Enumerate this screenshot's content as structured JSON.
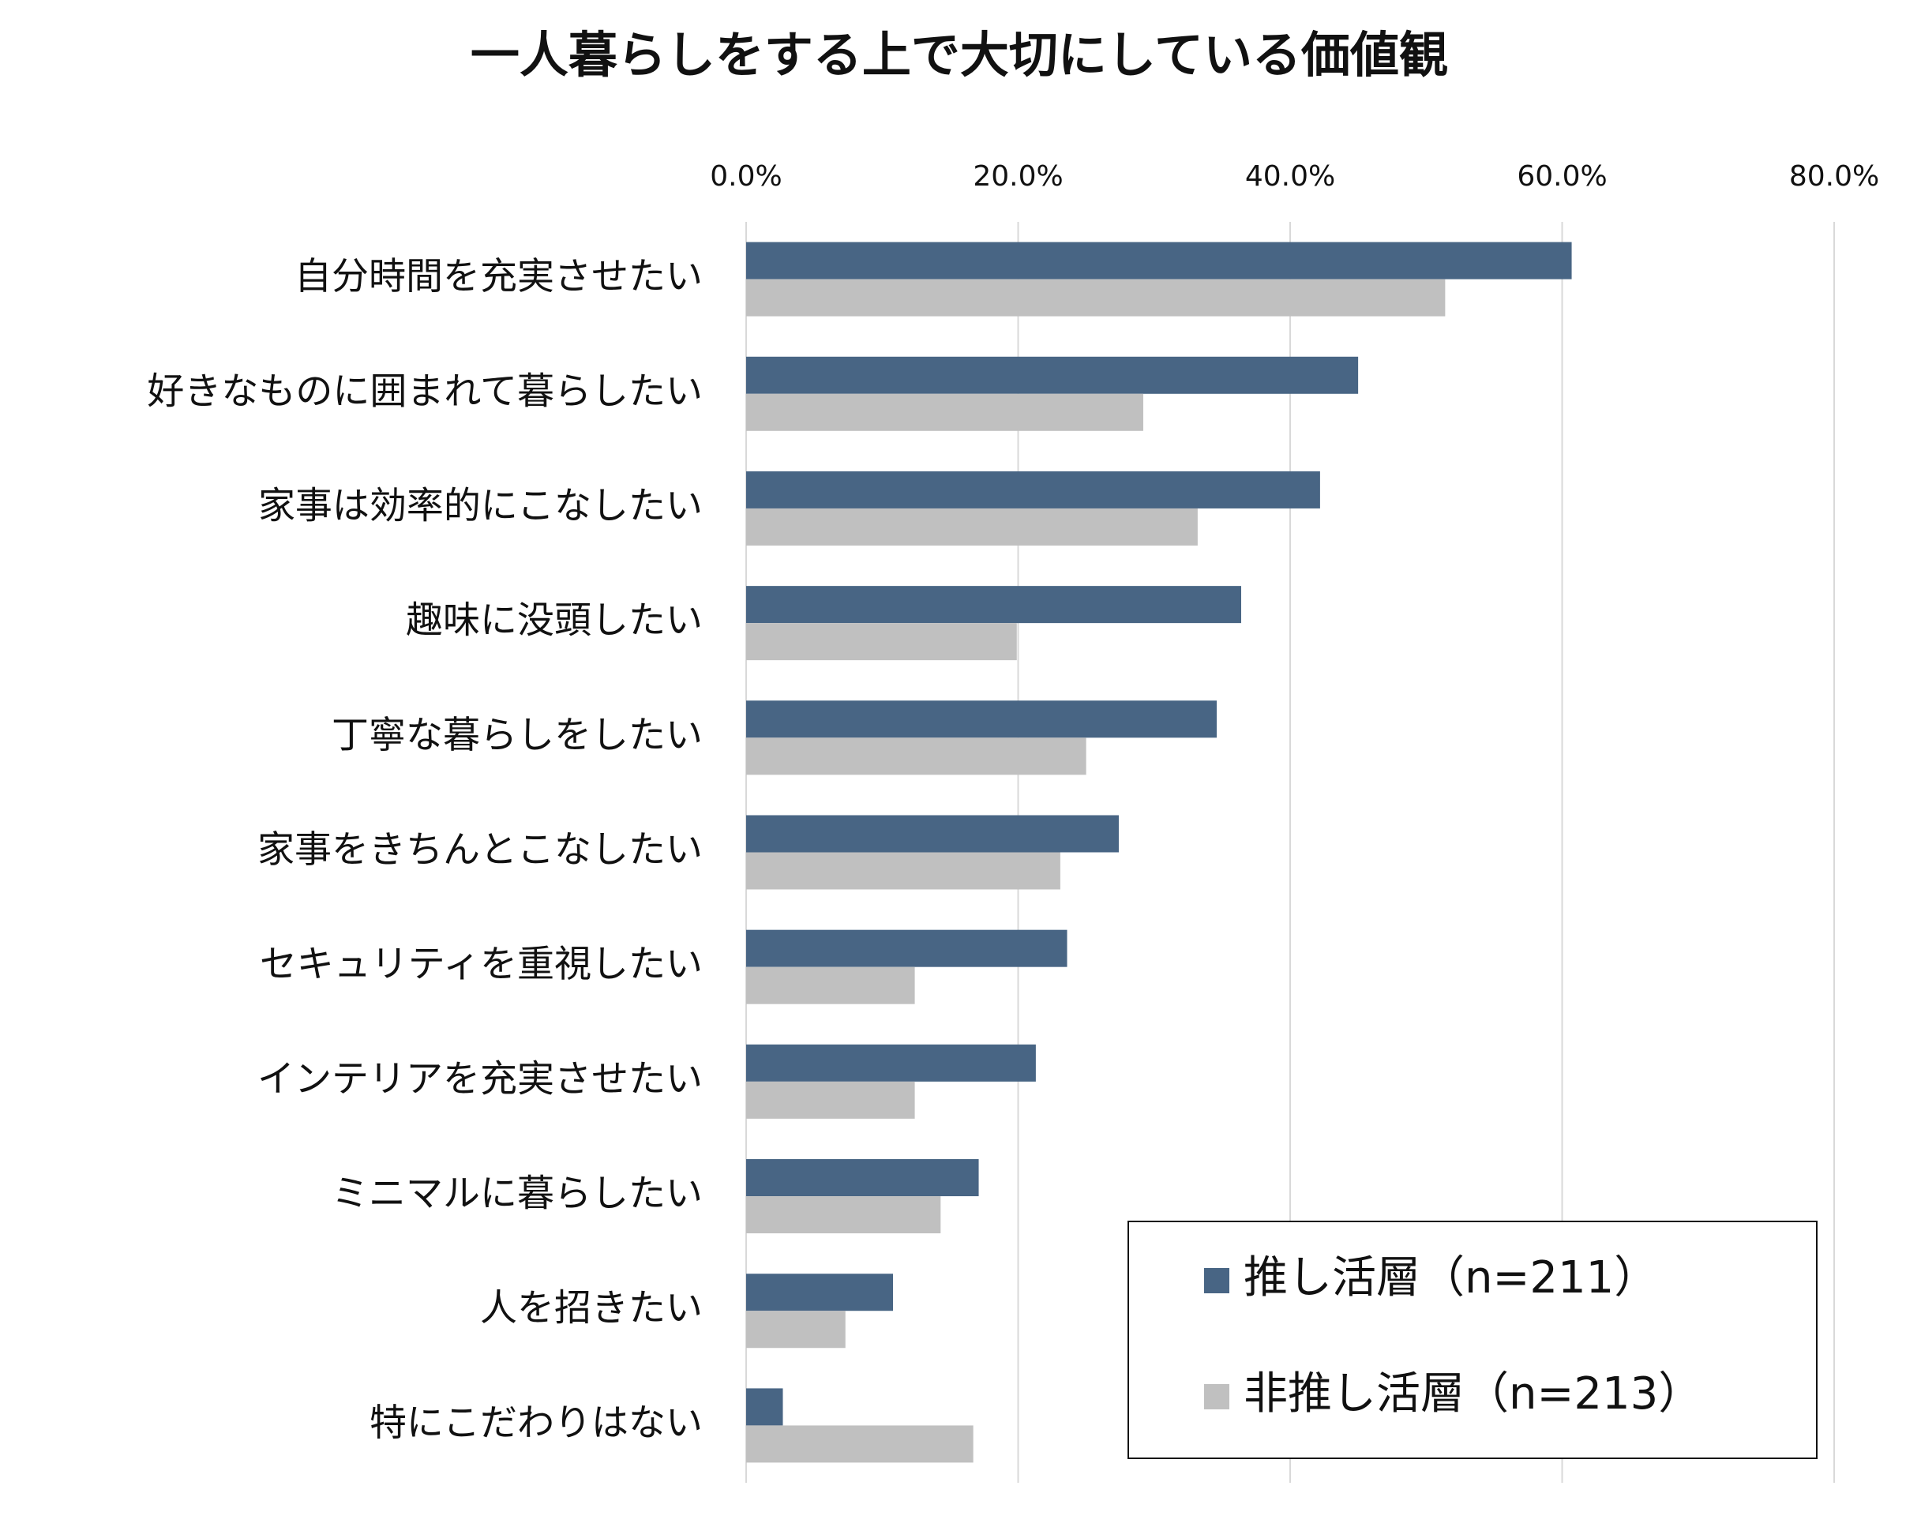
{
  "chart_data": {
    "type": "barh",
    "title": "一人暮らしをする上で大切にしている価値観",
    "categories": [
      "自分時間を充実させたい",
      "好きなものに囲まれて暮らしたい",
      "家事は効率的にこなしたい",
      "趣味に没頭したい",
      "丁寧な暮らしをしたい",
      "家事をきちんとこなしたい",
      "セキュリティを重視したい",
      "インテリアを充実させたい",
      "ミニマルに暮らしたい",
      "人を招きたい",
      "特にこだわりはない"
    ],
    "series": [
      {
        "name": "推し活層（n=211）",
        "color": "#486584",
        "values": [
          60.7,
          45.0,
          42.2,
          36.4,
          34.6,
          27.4,
          23.6,
          21.3,
          17.1,
          10.8,
          2.7
        ]
      },
      {
        "name": "非推し活層（n=213）",
        "color": "#c0c0c0",
        "values": [
          51.4,
          29.2,
          33.2,
          19.9,
          25.0,
          23.1,
          12.4,
          12.4,
          14.3,
          7.3,
          16.7
        ]
      }
    ],
    "xlim": [
      0,
      80
    ],
    "xticks": [
      {
        "value": 0,
        "label": "0.0%"
      },
      {
        "value": 20,
        "label": "20.0%"
      },
      {
        "value": 40,
        "label": "40.0%"
      },
      {
        "value": 60,
        "label": "60.0%"
      },
      {
        "value": 80,
        "label": "80.0%"
      }
    ],
    "grid": true,
    "legend": "lower right"
  }
}
